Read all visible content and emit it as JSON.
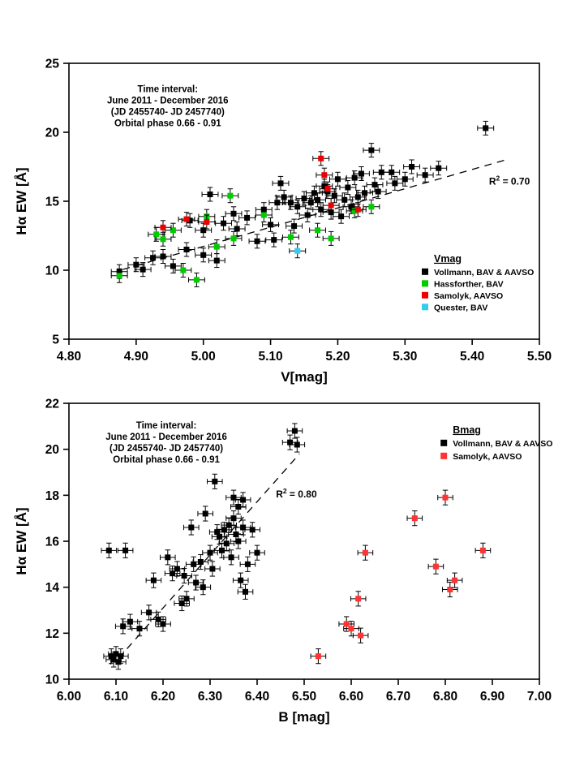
{
  "page": {
    "background": "#ffffff",
    "frame_color": "#000000"
  },
  "chart_data": [
    {
      "type": "scatter",
      "xlabel": "V[mag]",
      "ylabel": "Hα EW [Å]",
      "xlim": [
        4.8,
        5.5
      ],
      "ylim": [
        5,
        25
      ],
      "xtick_labels": [
        "4.80",
        "4.90",
        "5.00",
        "5.10",
        "5.20",
        "5.30",
        "5.40",
        "5.50"
      ],
      "ytick_labels": [
        "5",
        "10",
        "15",
        "20",
        "25"
      ],
      "grid": false,
      "annotation": {
        "lines": [
          "Time interval:",
          "June 2011 - December 2016",
          "(JD 2455740- JD 2457740)",
          "Orbital phase 0.66 - 0.91"
        ],
        "pos": [
          4.947,
          22.9
        ]
      },
      "r2": {
        "value": "0.70",
        "pos": [
          5.425,
          16.2
        ]
      },
      "trend": {
        "x1": 4.88,
        "y1": 10.05,
        "x2": 5.45,
        "y2": 18.0
      },
      "legend": {
        "title": "Vmag",
        "pos": [
          5.325,
          10.6
        ],
        "spacing": 14.5,
        "position_hint": "lower-right"
      },
      "xerr": 0.012,
      "yerr": 0.5,
      "series": [
        {
          "name": "Vollmann, BAV & AAVSO",
          "color": "#000000",
          "points": [
            [
              4.875,
              9.9
            ],
            [
              4.9,
              10.4
            ],
            [
              4.91,
              10.05
            ],
            [
              4.925,
              10.9
            ],
            [
              4.94,
              11.0
            ],
            [
              4.955,
              10.3
            ],
            [
              4.975,
              11.5
            ],
            [
              4.98,
              13.6
            ],
            [
              5.0,
              12.9
            ],
            [
              5.0,
              11.1
            ],
            [
              5.01,
              15.5
            ],
            [
              5.02,
              10.7
            ],
            [
              5.03,
              13.4
            ],
            [
              5.045,
              14.1
            ],
            [
              5.05,
              13.0
            ],
            [
              5.065,
              13.8
            ],
            [
              5.08,
              12.1
            ],
            [
              5.09,
              14.4
            ],
            [
              5.1,
              13.3
            ],
            [
              5.105,
              12.2
            ],
            [
              5.11,
              14.9
            ],
            [
              5.115,
              16.3
            ],
            [
              5.12,
              15.3
            ],
            [
              5.13,
              14.9
            ],
            [
              5.135,
              13.2
            ],
            [
              5.14,
              14.6
            ],
            [
              5.15,
              15.2
            ],
            [
              5.155,
              14.0
            ],
            [
              5.16,
              14.9
            ],
            [
              5.165,
              15.6
            ],
            [
              5.17,
              15.1
            ],
            [
              5.175,
              14.4
            ],
            [
              5.18,
              16.1
            ],
            [
              5.185,
              15.7
            ],
            [
              5.19,
              14.2
            ],
            [
              5.195,
              15.4
            ],
            [
              5.2,
              16.6
            ],
            [
              5.205,
              13.9
            ],
            [
              5.21,
              15.1
            ],
            [
              5.215,
              16.0
            ],
            [
              5.22,
              14.6
            ],
            [
              5.225,
              16.7
            ],
            [
              5.23,
              15.3
            ],
            [
              5.235,
              17.0
            ],
            [
              5.24,
              15.6
            ],
            [
              5.25,
              18.7
            ],
            [
              5.255,
              16.2
            ],
            [
              5.26,
              15.7
            ],
            [
              5.265,
              17.1
            ],
            [
              5.28,
              17.1
            ],
            [
              5.285,
              16.3
            ],
            [
              5.3,
              16.6
            ],
            [
              5.31,
              17.5
            ],
            [
              5.33,
              16.9
            ],
            [
              5.35,
              17.4
            ],
            [
              5.42,
              20.3
            ]
          ]
        },
        {
          "name": "Hassforther, BAV",
          "color": "#00cc00",
          "points": [
            [
              4.875,
              9.6
            ],
            [
              4.93,
              12.6
            ],
            [
              4.94,
              12.25
            ],
            [
              4.955,
              12.9
            ],
            [
              4.97,
              10.0
            ],
            [
              4.99,
              9.3
            ],
            [
              5.005,
              13.9
            ],
            [
              5.02,
              11.7
            ],
            [
              5.04,
              15.4
            ],
            [
              5.045,
              12.3
            ],
            [
              5.09,
              14.0
            ],
            [
              5.13,
              12.4
            ],
            [
              5.17,
              12.9
            ],
            [
              5.19,
              12.3
            ],
            [
              5.225,
              14.3
            ],
            [
              5.25,
              14.6
            ]
          ]
        },
        {
          "name": "Samolyk, AAVSO",
          "color": "#ee0000",
          "points": [
            [
              4.94,
              13.1
            ],
            [
              4.975,
              13.7
            ],
            [
              5.005,
              13.5
            ],
            [
              5.175,
              18.1
            ],
            [
              5.18,
              16.9
            ],
            [
              5.185,
              15.9
            ],
            [
              5.19,
              14.7
            ],
            [
              5.23,
              14.4
            ]
          ]
        },
        {
          "name": "Quester, BAV",
          "color": "#33ccee",
          "points": [
            [
              5.14,
              11.4
            ]
          ]
        }
      ]
    },
    {
      "type": "scatter",
      "xlabel": "B [mag]",
      "ylabel": "Hα EW [Å]",
      "xlim": [
        6.0,
        7.0
      ],
      "ylim": [
        10,
        22
      ],
      "xtick_labels": [
        "6.00",
        "6.10",
        "6.20",
        "6.30",
        "6.40",
        "6.50",
        "6.60",
        "6.70",
        "6.80",
        "6.90",
        "7.00"
      ],
      "ytick_labels": [
        "10",
        "12",
        "14",
        "16",
        "18",
        "20",
        "22"
      ],
      "grid": false,
      "annotation": {
        "lines": [
          "Time interval:",
          "June 2011 - December 2016",
          "(JD 2455740- JD 2457740)",
          "Orbital phase 0.66 - 0.91"
        ],
        "pos": [
          6.207,
          20.9
        ]
      },
      "r2": {
        "value": "0.80",
        "pos": [
          6.44,
          17.9
        ]
      },
      "trend": {
        "x1": 6.105,
        "y1": 10.9,
        "x2": 6.49,
        "y2": 19.8
      },
      "legend": {
        "title": "Bmag",
        "pos": [
          6.79,
          20.7
        ],
        "spacing": 16,
        "position_hint": "upper-right"
      },
      "xerr": 0.016,
      "yerr": 0.32,
      "series": [
        {
          "name": "Vollmann, BAV & AAVSO",
          "color": "#000000",
          "points": [
            [
              6.085,
              15.6
            ],
            [
              6.09,
              11.0
            ],
            [
              6.095,
              10.85
            ],
            [
              6.1,
              11.1
            ],
            [
              6.105,
              10.75
            ],
            [
              6.11,
              11.0
            ],
            [
              6.115,
              12.3
            ],
            [
              6.12,
              15.6
            ],
            [
              6.13,
              12.5
            ],
            [
              6.15,
              12.2
            ],
            [
              6.17,
              12.9
            ],
            [
              6.18,
              14.3
            ],
            [
              6.19,
              12.6
            ],
            [
              6.2,
              12.4
            ],
            [
              6.21,
              15.3
            ],
            [
              6.22,
              14.6
            ],
            [
              6.23,
              14.8
            ],
            [
              6.24,
              13.3
            ],
            [
              6.245,
              14.5
            ],
            [
              6.25,
              13.5
            ],
            [
              6.26,
              16.6
            ],
            [
              6.265,
              15.0
            ],
            [
              6.27,
              14.2
            ],
            [
              6.28,
              15.1
            ],
            [
              6.285,
              14.0
            ],
            [
              6.29,
              17.2
            ],
            [
              6.3,
              15.5
            ],
            [
              6.305,
              14.8
            ],
            [
              6.31,
              18.6
            ],
            [
              6.315,
              16.4
            ],
            [
              6.32,
              16.2
            ],
            [
              6.325,
              15.6
            ],
            [
              6.33,
              16.5
            ],
            [
              6.335,
              15.9
            ],
            [
              6.34,
              16.7
            ],
            [
              6.345,
              15.3
            ],
            [
              6.35,
              17.9
            ],
            [
              6.35,
              17.0
            ],
            [
              6.355,
              16.3
            ],
            [
              6.36,
              17.5
            ],
            [
              6.36,
              16.0
            ],
            [
              6.365,
              14.3
            ],
            [
              6.37,
              17.8
            ],
            [
              6.37,
              16.6
            ],
            [
              6.375,
              13.8
            ],
            [
              6.38,
              15.0
            ],
            [
              6.39,
              16.5
            ],
            [
              6.4,
              15.5
            ],
            [
              6.47,
              20.3
            ],
            [
              6.48,
              20.8
            ],
            [
              6.485,
              20.2
            ]
          ]
        },
        {
          "name": "Samolyk, AAVSO",
          "color": "#ff3333",
          "points": [
            [
              6.53,
              11.0
            ],
            [
              6.59,
              12.4
            ],
            [
              6.6,
              12.2
            ],
            [
              6.615,
              13.5
            ],
            [
              6.62,
              11.9
            ],
            [
              6.63,
              15.5
            ],
            [
              6.735,
              17.0
            ],
            [
              6.78,
              14.9
            ],
            [
              6.8,
              17.9
            ],
            [
              6.81,
              13.9
            ],
            [
              6.82,
              14.3
            ],
            [
              6.88,
              15.6
            ]
          ]
        }
      ]
    }
  ]
}
